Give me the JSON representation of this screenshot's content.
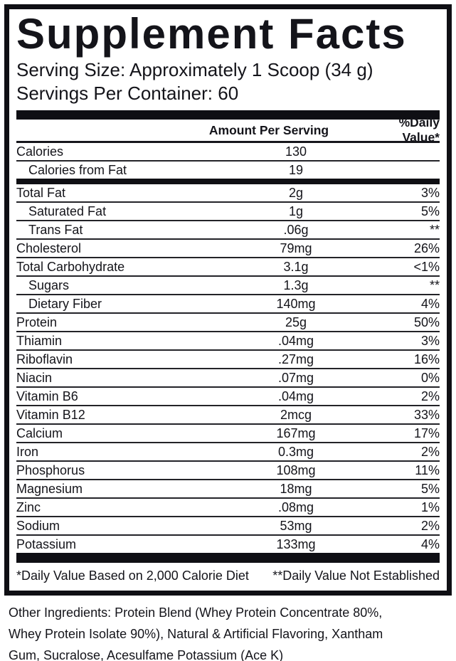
{
  "panel": {
    "title": "Supplement Facts",
    "serving_size": "Serving Size: Approximately 1 Scoop (34 g)",
    "servings_per_container": "Servings Per Container: 60",
    "columns": {
      "amount": "Amount Per Serving",
      "dv": "%Daily Value*"
    },
    "rows": [
      {
        "name": "Calories",
        "amount": "130",
        "dv": "",
        "indent": false,
        "sep": "thin"
      },
      {
        "name": "Calories from Fat",
        "amount": "19",
        "dv": "",
        "indent": true,
        "sep": "bar"
      },
      {
        "name": "Total Fat",
        "amount": "2g",
        "dv": "3%",
        "indent": false,
        "sep": "thin"
      },
      {
        "name": "Saturated Fat",
        "amount": "1g",
        "dv": "5%",
        "indent": true,
        "sep": "thin"
      },
      {
        "name": "Trans Fat",
        "amount": ".06g",
        "dv": "**",
        "indent": true,
        "sep": "thin"
      },
      {
        "name": "Cholesterol",
        "amount": "79mg",
        "dv": "26%",
        "indent": false,
        "sep": "thin"
      },
      {
        "name": "Total Carbohydrate",
        "amount": "3.1g",
        "dv": "<1%",
        "indent": false,
        "sep": "thin"
      },
      {
        "name": "Sugars",
        "amount": "1.3g",
        "dv": "**",
        "indent": true,
        "sep": "thin"
      },
      {
        "name": "Dietary Fiber",
        "amount": "140mg",
        "dv": "4%",
        "indent": true,
        "sep": "thin"
      },
      {
        "name": "Protein",
        "amount": "25g",
        "dv": "50%",
        "indent": false,
        "sep": "thin"
      },
      {
        "name": "Thiamin",
        "amount": ".04mg",
        "dv": "3%",
        "indent": false,
        "sep": "thin"
      },
      {
        "name": "Riboflavin",
        "amount": ".27mg",
        "dv": "16%",
        "indent": false,
        "sep": "thin"
      },
      {
        "name": "Niacin",
        "amount": ".07mg",
        "dv": "0%",
        "indent": false,
        "sep": "thin"
      },
      {
        "name": "Vitamin B6",
        "amount": ".04mg",
        "dv": "2%",
        "indent": false,
        "sep": "thin"
      },
      {
        "name": "Vitamin B12",
        "amount": "2mcg",
        "dv": "33%",
        "indent": false,
        "sep": "thin"
      },
      {
        "name": "Calcium",
        "amount": "167mg",
        "dv": "17%",
        "indent": false,
        "sep": "thin"
      },
      {
        "name": "Iron",
        "amount": "0.3mg",
        "dv": "2%",
        "indent": false,
        "sep": "thin"
      },
      {
        "name": "Phosphorus",
        "amount": "108mg",
        "dv": "11%",
        "indent": false,
        "sep": "thin"
      },
      {
        "name": "Magnesium",
        "amount": "18mg",
        "dv": "5%",
        "indent": false,
        "sep": "thin"
      },
      {
        "name": "Zinc",
        "amount": ".08mg",
        "dv": "1%",
        "indent": false,
        "sep": "thin"
      },
      {
        "name": "Sodium",
        "amount": "53mg",
        "dv": "2%",
        "indent": false,
        "sep": "thin"
      },
      {
        "name": "Potassium",
        "amount": "133mg",
        "dv": "4%",
        "indent": false,
        "sep": "none"
      }
    ],
    "footnotes": {
      "left": "*Daily Value Based on 2,000 Calorie Diet",
      "right": "**Daily Value Not Established"
    },
    "other_ingredients": "Other Ingredients: Protein Blend (Whey Protein Concentrate 80%,\nWhey Protein Isolate 90%), Natural & Artificial Flavoring, Xantham\nGum, Sucralose, Acesulfame Potassium (Ace K)",
    "colors": {
      "ink": "#14141a",
      "background": "#ffffff"
    }
  }
}
